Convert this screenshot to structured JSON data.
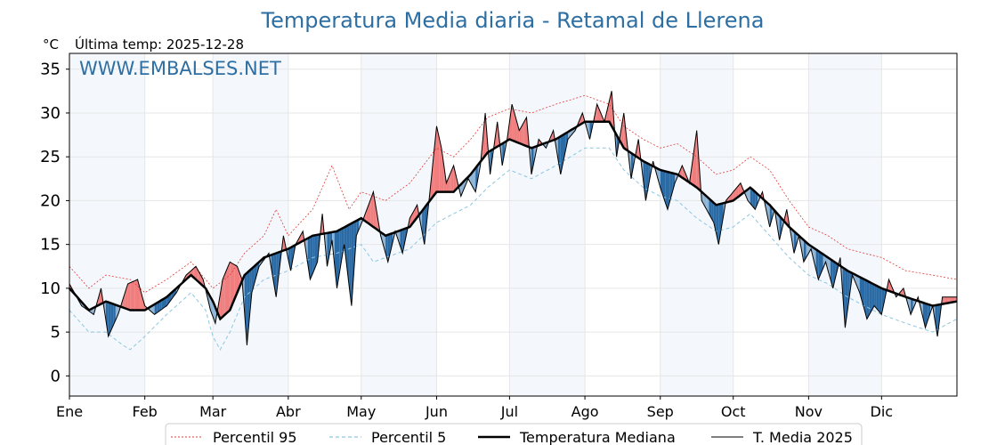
{
  "chart_data": {
    "type": "line",
    "title": "Temperatura Media diaria - Retamal de Llerena",
    "unit_label": "°C",
    "last_temp_label": "Última temp: 2025-12-28",
    "watermark": "WWW.EMBALSES.NET",
    "ylim": [
      -2.3,
      36.8
    ],
    "yticks": [
      0,
      5,
      10,
      15,
      20,
      25,
      30,
      35
    ],
    "xlim": [
      0,
      365
    ],
    "months": [
      "Ene",
      "Feb",
      "Mar",
      "Abr",
      "May",
      "Jun",
      "Jul",
      "Ago",
      "Sep",
      "Oct",
      "Nov",
      "Dic"
    ],
    "month_days": [
      0,
      31,
      59,
      90,
      120,
      151,
      181,
      212,
      243,
      273,
      304,
      334
    ],
    "legend": [
      "Percentil 95",
      "Percentil 5",
      "Temperatura Mediana",
      "T. Media 2025"
    ],
    "colors": {
      "title": "#2e6fa3",
      "p95": "#e03b3b",
      "p5": "#8fc6e0",
      "median": "#000000",
      "t2025": "#000000",
      "above_fill": "#f07e7e",
      "below_fill_dark": "#2a6aa5",
      "below_fill_light": "#8fb5d6",
      "band": "#f4f8fc"
    },
    "median_knots": [
      [
        0,
        10
      ],
      [
        8,
        7.5
      ],
      [
        15,
        8.5
      ],
      [
        25,
        7.5
      ],
      [
        31,
        7.5
      ],
      [
        40,
        9
      ],
      [
        50,
        11.5
      ],
      [
        56,
        10
      ],
      [
        59,
        8.5
      ],
      [
        62,
        6.5
      ],
      [
        66,
        7.5
      ],
      [
        72,
        11.5
      ],
      [
        80,
        13.5
      ],
      [
        90,
        14.5
      ],
      [
        100,
        16
      ],
      [
        110,
        16.5
      ],
      [
        120,
        18
      ],
      [
        130,
        16
      ],
      [
        140,
        17
      ],
      [
        151,
        21
      ],
      [
        158,
        21
      ],
      [
        165,
        23
      ],
      [
        172,
        25.5
      ],
      [
        181,
        27
      ],
      [
        190,
        26
      ],
      [
        200,
        27
      ],
      [
        212,
        29
      ],
      [
        222,
        29
      ],
      [
        228,
        26
      ],
      [
        236,
        24.5
      ],
      [
        243,
        23.5
      ],
      [
        250,
        23
      ],
      [
        258,
        21.5
      ],
      [
        266,
        19.5
      ],
      [
        273,
        20
      ],
      [
        280,
        21.5
      ],
      [
        288,
        19.5
      ],
      [
        296,
        17
      ],
      [
        304,
        15
      ],
      [
        312,
        13.5
      ],
      [
        320,
        12
      ],
      [
        334,
        10
      ],
      [
        344,
        9
      ],
      [
        355,
        8
      ],
      [
        365,
        8.5
      ]
    ],
    "p95_knots": [
      [
        0,
        12.5
      ],
      [
        8,
        10
      ],
      [
        15,
        11.5
      ],
      [
        25,
        11
      ],
      [
        31,
        9.5
      ],
      [
        40,
        11
      ],
      [
        50,
        13
      ],
      [
        59,
        10
      ],
      [
        66,
        11.5
      ],
      [
        72,
        14
      ],
      [
        80,
        16
      ],
      [
        85,
        19
      ],
      [
        90,
        16
      ],
      [
        100,
        19
      ],
      [
        108,
        24
      ],
      [
        115,
        19
      ],
      [
        120,
        21
      ],
      [
        130,
        20
      ],
      [
        140,
        22
      ],
      [
        151,
        26
      ],
      [
        158,
        25
      ],
      [
        165,
        27
      ],
      [
        172,
        29.5
      ],
      [
        181,
        30.5
      ],
      [
        190,
        30
      ],
      [
        200,
        31
      ],
      [
        212,
        32
      ],
      [
        222,
        31
      ],
      [
        228,
        28.5
      ],
      [
        236,
        27
      ],
      [
        243,
        26
      ],
      [
        250,
        26.5
      ],
      [
        258,
        25
      ],
      [
        266,
        23
      ],
      [
        273,
        23.5
      ],
      [
        280,
        25
      ],
      [
        288,
        23.5
      ],
      [
        296,
        20
      ],
      [
        304,
        17
      ],
      [
        312,
        16
      ],
      [
        320,
        14.5
      ],
      [
        334,
        13.5
      ],
      [
        344,
        12
      ],
      [
        355,
        11.5
      ],
      [
        365,
        11
      ]
    ],
    "p5_knots": [
      [
        0,
        7.5
      ],
      [
        8,
        5
      ],
      [
        15,
        5
      ],
      [
        22,
        3.5
      ],
      [
        25,
        3
      ],
      [
        31,
        4.5
      ],
      [
        40,
        7
      ],
      [
        50,
        9.5
      ],
      [
        56,
        7.5
      ],
      [
        59,
        4.5
      ],
      [
        62,
        3
      ],
      [
        66,
        5
      ],
      [
        72,
        9
      ],
      [
        80,
        11
      ],
      [
        90,
        12
      ],
      [
        100,
        13.5
      ],
      [
        110,
        14
      ],
      [
        120,
        15
      ],
      [
        125,
        13
      ],
      [
        130,
        13.5
      ],
      [
        140,
        14.5
      ],
      [
        151,
        17.5
      ],
      [
        158,
        18.5
      ],
      [
        165,
        19.5
      ],
      [
        172,
        21.5
      ],
      [
        181,
        23.5
      ],
      [
        190,
        22.5
      ],
      [
        200,
        24
      ],
      [
        212,
        26
      ],
      [
        222,
        26
      ],
      [
        228,
        23.5
      ],
      [
        236,
        21.5
      ],
      [
        243,
        20.5
      ],
      [
        250,
        20
      ],
      [
        258,
        18
      ],
      [
        266,
        16.5
      ],
      [
        273,
        17
      ],
      [
        280,
        18.5
      ],
      [
        288,
        16
      ],
      [
        296,
        13.5
      ],
      [
        304,
        11.5
      ],
      [
        312,
        10.5
      ],
      [
        320,
        9
      ],
      [
        334,
        7
      ],
      [
        344,
        6
      ],
      [
        355,
        5
      ],
      [
        365,
        6.5
      ]
    ],
    "t2025_knots": [
      [
        0,
        10.5
      ],
      [
        5,
        8
      ],
      [
        10,
        7
      ],
      [
        13,
        10
      ],
      [
        16,
        4.5
      ],
      [
        20,
        7
      ],
      [
        24,
        10.5
      ],
      [
        28,
        11
      ],
      [
        31,
        8
      ],
      [
        35,
        7
      ],
      [
        40,
        8
      ],
      [
        44,
        9.5
      ],
      [
        48,
        11.5
      ],
      [
        52,
        12.5
      ],
      [
        55,
        11
      ],
      [
        58,
        7.5
      ],
      [
        60,
        6
      ],
      [
        63,
        11
      ],
      [
        66,
        13
      ],
      [
        69,
        12.5
      ],
      [
        71,
        11
      ],
      [
        73,
        3.5
      ],
      [
        75,
        9.5
      ],
      [
        78,
        12.5
      ],
      [
        82,
        14
      ],
      [
        85,
        9
      ],
      [
        88,
        16
      ],
      [
        91,
        12
      ],
      [
        93,
        15
      ],
      [
        96,
        16.5
      ],
      [
        99,
        11
      ],
      [
        102,
        13
      ],
      [
        104,
        18.5
      ],
      [
        106,
        12.5
      ],
      [
        108,
        15.5
      ],
      [
        110,
        10
      ],
      [
        113,
        15
      ],
      [
        116,
        8
      ],
      [
        118,
        16
      ],
      [
        121,
        18
      ],
      [
        125,
        21
      ],
      [
        128,
        16
      ],
      [
        131,
        13
      ],
      [
        134,
        16.5
      ],
      [
        137,
        14
      ],
      [
        140,
        18
      ],
      [
        143,
        19.5
      ],
      [
        146,
        15
      ],
      [
        149,
        23
      ],
      [
        151,
        28.5
      ],
      [
        153,
        26
      ],
      [
        155,
        22
      ],
      [
        158,
        24
      ],
      [
        161,
        20.5
      ],
      [
        164,
        22.5
      ],
      [
        167,
        21
      ],
      [
        169,
        24
      ],
      [
        171,
        30
      ],
      [
        173,
        23
      ],
      [
        176,
        29
      ],
      [
        178,
        24
      ],
      [
        180,
        27
      ],
      [
        182,
        31
      ],
      [
        185,
        28
      ],
      [
        188,
        29.5
      ],
      [
        190,
        23
      ],
      [
        193,
        27
      ],
      [
        196,
        26
      ],
      [
        199,
        28
      ],
      [
        202,
        23
      ],
      [
        205,
        27
      ],
      [
        208,
        28
      ],
      [
        211,
        30
      ],
      [
        214,
        27
      ],
      [
        217,
        31
      ],
      [
        220,
        29
      ],
      [
        223,
        32.5
      ],
      [
        225,
        25
      ],
      [
        228,
        30
      ],
      [
        231,
        22.5
      ],
      [
        234,
        27
      ],
      [
        237,
        20
      ],
      [
        240,
        24.5
      ],
      [
        243,
        21.5
      ],
      [
        246,
        19
      ],
      [
        249,
        22
      ],
      [
        252,
        24
      ],
      [
        255,
        22
      ],
      [
        258,
        28
      ],
      [
        260,
        20
      ],
      [
        263,
        18.5
      ],
      [
        265,
        17.5
      ],
      [
        267,
        15
      ],
      [
        270,
        20
      ],
      [
        273,
        21
      ],
      [
        276,
        22
      ],
      [
        279,
        20
      ],
      [
        282,
        19
      ],
      [
        285,
        21
      ],
      [
        288,
        17
      ],
      [
        290,
        19
      ],
      [
        292,
        15.5
      ],
      [
        295,
        19
      ],
      [
        298,
        14
      ],
      [
        300,
        16
      ],
      [
        302,
        13
      ],
      [
        305,
        14.5
      ],
      [
        308,
        11
      ],
      [
        311,
        13
      ],
      [
        314,
        10
      ],
      [
        317,
        13.5
      ],
      [
        319,
        5.5
      ],
      [
        322,
        11.5
      ],
      [
        325,
        9.5
      ],
      [
        328,
        6.5
      ],
      [
        331,
        8
      ],
      [
        334,
        7
      ],
      [
        337,
        11
      ],
      [
        340,
        9
      ],
      [
        343,
        10
      ],
      [
        346,
        7
      ],
      [
        349,
        9
      ],
      [
        352,
        5.5
      ],
      [
        355,
        8
      ],
      [
        357,
        4.5
      ],
      [
        359,
        9
      ],
      [
        362,
        9
      ],
      [
        365,
        9
      ]
    ]
  }
}
